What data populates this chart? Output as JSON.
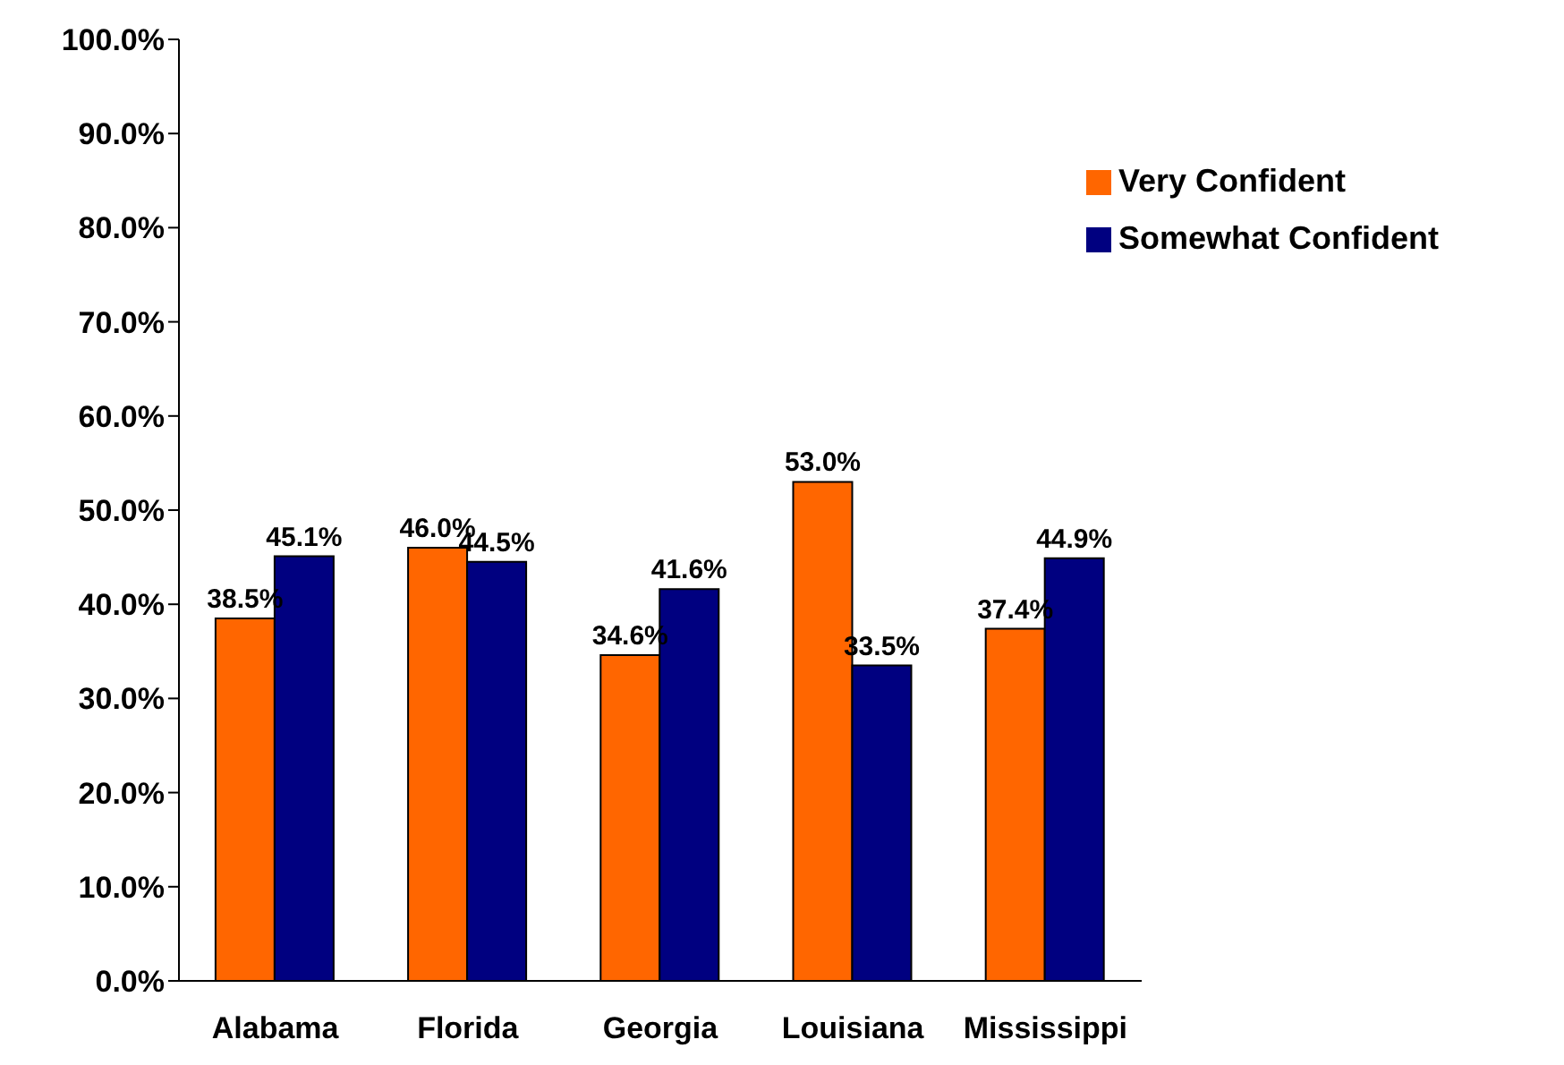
{
  "chart_data": {
    "type": "bar",
    "categories": [
      "Alabama",
      "Florida",
      "Georgia",
      "Louisiana",
      "Mississippi"
    ],
    "series": [
      {
        "name": "Very Confident",
        "color": "#ff6600",
        "values": [
          38.5,
          46.0,
          34.6,
          53.0,
          37.4
        ],
        "value_labels": [
          "38.5%",
          "46.0%",
          "34.6%",
          "53.0%",
          "37.4%"
        ]
      },
      {
        "name": "Somewhat Confident",
        "color": "#000080",
        "values": [
          45.1,
          44.5,
          41.6,
          33.5,
          44.9
        ],
        "value_labels": [
          "45.1%",
          "44.5%",
          "41.6%",
          "33.5%",
          "44.9%"
        ]
      }
    ],
    "ylim": [
      0,
      100
    ],
    "yticks": [
      {
        "value": 0,
        "label": "0.0%"
      },
      {
        "value": 10,
        "label": "10.0%"
      },
      {
        "value": 20,
        "label": "20.0%"
      },
      {
        "value": 30,
        "label": "30.0%"
      },
      {
        "value": 40,
        "label": "40.0%"
      },
      {
        "value": 50,
        "label": "50.0%"
      },
      {
        "value": 60,
        "label": "60.0%"
      },
      {
        "value": 70,
        "label": "70.0%"
      },
      {
        "value": 80,
        "label": "80.0%"
      },
      {
        "value": 90,
        "label": "90.0%"
      },
      {
        "value": 100,
        "label": "100.0%"
      }
    ],
    "grid": false,
    "legend": "top right"
  }
}
